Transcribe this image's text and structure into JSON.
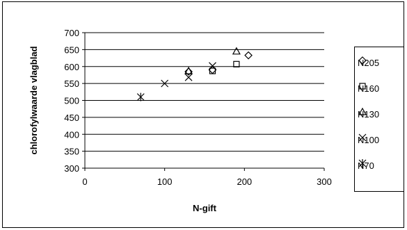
{
  "chart_data": {
    "type": "scatter",
    "xlabel": "N-gift",
    "ylabel": "chlorofylwaarde vlagblad",
    "xlim": [
      0,
      300
    ],
    "ylim": [
      300,
      700
    ],
    "xticks": [
      0,
      100,
      200,
      300
    ],
    "yticks": [
      300,
      350,
      400,
      450,
      500,
      550,
      600,
      650,
      700
    ],
    "grid": "horizontal",
    "legend_position": "right",
    "series": [
      {
        "name": "N205",
        "marker": "diamond",
        "x": [
          130,
          160,
          205
        ],
        "y": [
          585,
          590,
          633
        ]
      },
      {
        "name": "N160",
        "marker": "square",
        "x": [
          160,
          190
        ],
        "y": [
          587,
          607
        ]
      },
      {
        "name": "N130",
        "marker": "triangle",
        "x": [
          130,
          190
        ],
        "y": [
          587,
          645
        ]
      },
      {
        "name": "N100",
        "marker": "x",
        "x": [
          100,
          130,
          160
        ],
        "y": [
          550,
          568,
          602
        ]
      },
      {
        "name": "N70",
        "marker": "star",
        "x": [
          70
        ],
        "y": [
          510
        ]
      }
    ]
  }
}
